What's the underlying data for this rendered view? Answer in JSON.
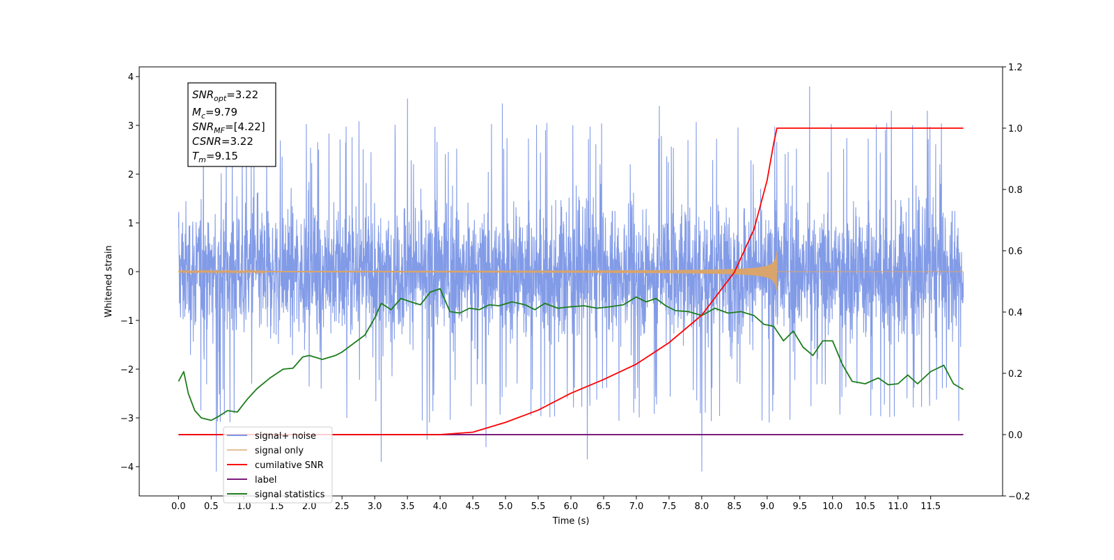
{
  "chart_data": {
    "type": "line",
    "xlabel": "Time (s)",
    "ylabel": "Whitened strain",
    "xlim": [
      -0.6,
      12.6
    ],
    "ylim": [
      -4.6,
      4.2
    ],
    "y2lim": [
      -0.2,
      1.2
    ],
    "x_ticks": [
      0.0,
      0.5,
      1.0,
      1.5,
      2.0,
      2.5,
      3.0,
      3.5,
      4.0,
      4.5,
      5.0,
      5.5,
      6.0,
      6.5,
      7.0,
      7.5,
      8.0,
      8.5,
      9.0,
      9.5,
      10.0,
      10.5,
      11.0,
      11.5
    ],
    "y_ticks": [
      -4,
      -3,
      -2,
      -1,
      0,
      1,
      2,
      3,
      4
    ],
    "y2_ticks": [
      -0.2,
      0.0,
      0.2,
      0.4,
      0.6,
      0.8,
      1.0,
      1.2
    ],
    "grid": false,
    "legend_position": "lower-left",
    "info_box": {
      "snr_opt": {
        "base": "SNR",
        "sub": "opt",
        "value": "=3.22"
      },
      "mc": {
        "base": "M",
        "sub": "c",
        "value": "=9.79"
      },
      "snr_mf": {
        "base": "SNR",
        "sub": "MF",
        "value": "=[4.22]"
      },
      "csnr": {
        "base": "CSNR",
        "sub": "",
        "value": "=3.22"
      },
      "tm": {
        "base": "T",
        "sub": "m",
        "value": "=9.15"
      }
    },
    "series": [
      {
        "name": "signal+ noise",
        "axis": "left",
        "color": "#7b96e6",
        "description": "broadband noise, amplitude roughly +-2.3 with spikes up to 3.8 and down to -4.1",
        "spikes": [
          {
            "x": 0.58,
            "y": -4.1
          },
          {
            "x": 3.1,
            "y": -3.9
          },
          {
            "x": 3.5,
            "y": 3.55
          },
          {
            "x": 4.95,
            "y": 3.45
          },
          {
            "x": 6.25,
            "y": -3.85
          },
          {
            "x": 7.35,
            "y": 3.4
          },
          {
            "x": 8.0,
            "y": -4.1
          },
          {
            "x": 9.65,
            "y": 3.8
          },
          {
            "x": 4.7,
            "y": -3.6
          },
          {
            "x": 3.8,
            "y": -3.45
          },
          {
            "x": 10.9,
            "y": 3.3
          },
          {
            "x": 11.45,
            "y": 3.3
          }
        ]
      },
      {
        "name": "signal only",
        "axis": "left",
        "color": "#d9a56c",
        "description": "chirp, near-zero amplitude, growing to about +-0.45 at merger t=9.15 then zero",
        "merger_time": 9.15,
        "peak_amplitude": 0.45
      },
      {
        "name": "cumilative SNR",
        "axis": "right",
        "color": "#ff0000",
        "x": [
          0.0,
          4.0,
          4.5,
          5.0,
          5.5,
          6.0,
          6.5,
          7.0,
          7.5,
          8.0,
          8.5,
          8.8,
          9.0,
          9.1,
          9.15,
          12.0
        ],
        "values": [
          0.0,
          0.0,
          0.008,
          0.04,
          0.08,
          0.135,
          0.18,
          0.23,
          0.3,
          0.39,
          0.53,
          0.67,
          0.83,
          0.95,
          1.0,
          1.0
        ]
      },
      {
        "name": "label",
        "axis": "right",
        "color": "#7b1c7b",
        "x": [
          0.0,
          12.0
        ],
        "values": [
          0.0,
          0.0
        ]
      },
      {
        "name": "signal statistics",
        "axis": "left",
        "color": "#1c7d1c",
        "x": [
          0.0,
          0.08,
          0.15,
          0.25,
          0.35,
          0.5,
          0.6,
          0.75,
          0.9,
          1.05,
          1.2,
          1.4,
          1.6,
          1.75,
          1.9,
          2.0,
          2.2,
          2.4,
          2.5,
          2.7,
          2.85,
          3.0,
          3.1,
          3.25,
          3.4,
          3.55,
          3.7,
          3.85,
          4.0,
          4.15,
          4.3,
          4.45,
          4.6,
          4.75,
          4.9,
          5.1,
          5.3,
          5.45,
          5.6,
          5.8,
          6.0,
          6.2,
          6.4,
          6.6,
          6.8,
          7.0,
          7.15,
          7.3,
          7.45,
          7.6,
          7.8,
          8.0,
          8.2,
          8.4,
          8.6,
          8.8,
          8.95,
          9.1,
          9.25,
          9.4,
          9.55,
          9.7,
          9.85,
          10.0,
          10.15,
          10.3,
          10.5,
          10.7,
          10.85,
          11.0,
          11.15,
          11.3,
          11.5,
          11.7,
          11.85,
          12.0
        ],
        "values": [
          -2.25,
          -2.05,
          -2.5,
          -2.85,
          -3.0,
          -3.05,
          -2.98,
          -2.85,
          -2.88,
          -2.62,
          -2.4,
          -2.18,
          -2.0,
          -1.98,
          -1.75,
          -1.72,
          -1.8,
          -1.72,
          -1.65,
          -1.45,
          -1.3,
          -0.95,
          -0.65,
          -0.78,
          -0.55,
          -0.62,
          -0.68,
          -0.42,
          -0.35,
          -0.82,
          -0.85,
          -0.75,
          -0.78,
          -0.68,
          -0.7,
          -0.62,
          -0.68,
          -0.78,
          -0.65,
          -0.75,
          -0.72,
          -0.7,
          -0.75,
          -0.72,
          -0.68,
          -0.52,
          -0.62,
          -0.55,
          -0.7,
          -0.8,
          -0.82,
          -0.9,
          -0.75,
          -0.85,
          -0.82,
          -0.9,
          -1.08,
          -1.12,
          -1.42,
          -1.22,
          -1.55,
          -1.72,
          -1.42,
          -1.42,
          -1.9,
          -2.25,
          -2.3,
          -2.18,
          -2.32,
          -2.3,
          -2.12,
          -2.3,
          -2.05,
          -1.92,
          -2.3,
          -2.42
        ]
      }
    ]
  }
}
